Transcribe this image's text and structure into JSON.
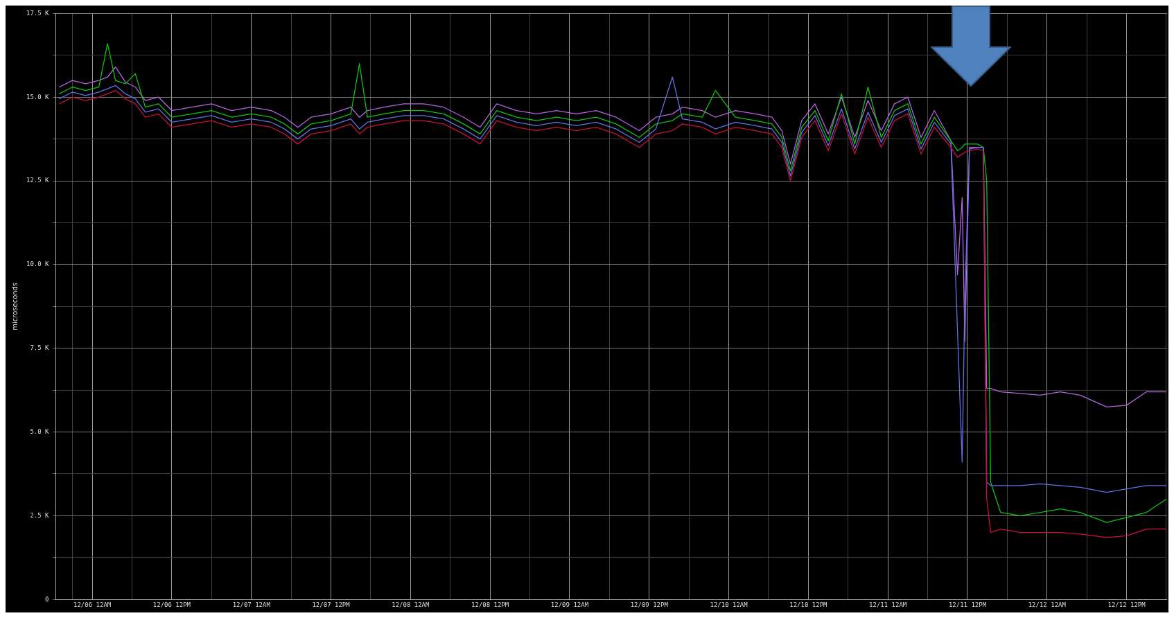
{
  "chart_data": {
    "type": "line",
    "ylabel": "microseconds",
    "grid": true,
    "legend": false,
    "marker": "none",
    "line_style": "solid",
    "x": [
      "--12-05T19:00",
      "--12-05T21:00",
      "--12-05T23:00",
      "--12-06T01:00",
      "--12-06T02:18",
      "--12-06T03:30",
      "--12-06T05:00",
      "--12-06T06:30",
      "--12-06T08:00",
      "--12-06T10:00",
      "--12-06T12:00",
      "--12-06T15:00",
      "--12-06T18:00",
      "--12-06T21:00",
      "--12-07T00:00",
      "--12-07T03:00",
      "--12-07T05:00",
      "--12-07T07:00",
      "--12-07T09:00",
      "--12-07T12:00",
      "--12-07T15:00",
      "--12-07T16:18",
      "--12-07T17:30",
      "--12-07T20:00",
      "--12-07T23:00",
      "--12-08T02:00",
      "--12-08T05:00",
      "--12-08T08:00",
      "--12-08T10:30",
      "--12-08T13:00",
      "--12-08T16:00",
      "--12-08T19:00",
      "--12-08T22:00",
      "--12-09T01:00",
      "--12-09T04:00",
      "--12-09T07:00",
      "--12-09T10:30",
      "--12-09T13:00",
      "--12-09T15:30",
      "--12-09T17:00",
      "--12-09T20:00",
      "--12-09T22:00",
      "--12-10T01:00",
      "--12-10T04:00",
      "--12-10T06:30",
      "--12-10T08:00",
      "--12-10T09:18",
      "--12-10T11:00",
      "--12-10T13:00",
      "--12-10T15:00",
      "--12-10T17:00",
      "--12-10T19:00",
      "--12-10T21:00",
      "--12-10T23:00",
      "--12-11T01:00",
      "--12-11T03:00",
      "--12-11T05:00",
      "--12-11T07:00",
      "--12-11T09:30",
      "--12-11T10:30",
      "--12-11T11:12",
      "--12-11T11:36",
      "--12-11T12:18",
      "--12-11T13:30",
      "--12-11T14:24",
      "--12-11T14:54",
      "--12-11T15:30",
      "--12-11T17:00",
      "--12-11T20:00",
      "--12-11T23:00",
      "--12-12T02:00",
      "--12-12T05:00",
      "--12-12T09:00",
      "--12-12T12:00",
      "--12-12T15:00",
      "--12-12T18:00"
    ],
    "xlim": [
      "--12-05T18:30",
      "--12-12T18:06"
    ],
    "xticks": [
      {
        "value": "--12-05T21:00",
        "label": null
      },
      {
        "value": "--12-06T00:00",
        "label": "12/06 12AM"
      },
      {
        "value": "--12-06T06:00",
        "label": null
      },
      {
        "value": "--12-06T12:00",
        "label": "12/06 12PM"
      },
      {
        "value": "--12-06T18:00",
        "label": null
      },
      {
        "value": "--12-07T00:00",
        "label": "12/07 12AM"
      },
      {
        "value": "--12-07T06:00",
        "label": null
      },
      {
        "value": "--12-07T12:00",
        "label": "12/07 12PM"
      },
      {
        "value": "--12-07T18:00",
        "label": null
      },
      {
        "value": "--12-08T00:00",
        "label": "12/08 12AM"
      },
      {
        "value": "--12-08T06:00",
        "label": null
      },
      {
        "value": "--12-08T12:00",
        "label": "12/08 12PM"
      },
      {
        "value": "--12-08T18:00",
        "label": null
      },
      {
        "value": "--12-09T00:00",
        "label": "12/09 12AM"
      },
      {
        "value": "--12-09T06:00",
        "label": null
      },
      {
        "value": "--12-09T12:00",
        "label": "12/09 12PM"
      },
      {
        "value": "--12-09T18:00",
        "label": null
      },
      {
        "value": "--12-10T00:00",
        "label": "12/10 12AM"
      },
      {
        "value": "--12-10T06:00",
        "label": null
      },
      {
        "value": "--12-10T12:00",
        "label": "12/10 12PM"
      },
      {
        "value": "--12-10T18:00",
        "label": null
      },
      {
        "value": "--12-11T00:00",
        "label": "12/11 12AM"
      },
      {
        "value": "--12-11T06:00",
        "label": null
      },
      {
        "value": "--12-11T12:00",
        "label": "12/11 12PM"
      },
      {
        "value": "--12-11T18:00",
        "label": null
      },
      {
        "value": "--12-12T00:00",
        "label": "12/12 12AM"
      },
      {
        "value": "--12-12T06:00",
        "label": null
      },
      {
        "value": "--12-12T12:00",
        "label": "12/12 12PM"
      },
      {
        "value": "--12-12T18:00",
        "label": null
      }
    ],
    "ylim": [
      0,
      17500
    ],
    "yticks": [
      0,
      {
        "value": 1250,
        "label": null
      },
      {
        "value": 2500,
        "label": "2.5 K"
      },
      {
        "value": 3750,
        "label": null
      },
      {
        "value": 5000,
        "label": "5.0 K"
      },
      {
        "value": 6250,
        "label": null
      },
      {
        "value": 7500,
        "label": "7.5 K"
      },
      {
        "value": 8750,
        "label": null
      },
      {
        "value": 10000,
        "label": "10.0 K"
      },
      {
        "value": 11250,
        "label": null
      },
      {
        "value": 12500,
        "label": "12.5 K"
      },
      {
        "value": 13750,
        "label": null
      },
      {
        "value": 15000,
        "label": "15.0 K"
      },
      {
        "value": 16250,
        "label": null
      },
      {
        "value": 17500,
        "label": "17.5 K"
      }
    ],
    "series": [
      {
        "color": "#c8103c",
        "values": [
          14800,
          15000,
          14900,
          15000,
          15100,
          15200,
          14950,
          14800,
          14400,
          14500,
          14100,
          14200,
          14300,
          14100,
          14200,
          14100,
          13900,
          13600,
          13900,
          14000,
          14200,
          13900,
          14100,
          14200,
          14300,
          14300,
          14200,
          13900,
          13600,
          14300,
          14100,
          14000,
          14100,
          14000,
          14100,
          13900,
          13500,
          13900,
          14000,
          14200,
          14100,
          13900,
          14100,
          14000,
          13900,
          13500,
          12500,
          13800,
          14300,
          13400,
          14500,
          13300,
          14400,
          13500,
          14300,
          14500,
          13300,
          14100,
          13500,
          13200,
          13300,
          13350,
          13400,
          13450,
          13400,
          3000,
          2000,
          2100,
          2000,
          2000,
          2000,
          1950,
          1850,
          1900,
          2100,
          2100
        ]
      },
      {
        "color": "#6272e6",
        "values": [
          14950,
          15150,
          15050,
          15150,
          15250,
          15350,
          15100,
          14950,
          14550,
          14650,
          14250,
          14350,
          14450,
          14250,
          14350,
          14250,
          14050,
          13750,
          14050,
          14150,
          14350,
          14050,
          14250,
          14350,
          14450,
          14450,
          14350,
          14050,
          13750,
          14450,
          14250,
          14150,
          14250,
          14150,
          14250,
          14050,
          13650,
          14050,
          15600,
          14350,
          14250,
          14050,
          14250,
          14150,
          14050,
          13650,
          12650,
          13950,
          14450,
          13550,
          14650,
          13450,
          14550,
          13650,
          14450,
          14650,
          13450,
          14250,
          13600,
          8000,
          4100,
          9000,
          13450,
          13500,
          13500,
          3500,
          3400,
          3400,
          3400,
          3450,
          3400,
          3350,
          3200,
          3300,
          3400,
          3400
        ]
      },
      {
        "color": "#10c010",
        "values": [
          15100,
          15300,
          15200,
          15300,
          16600,
          15500,
          15400,
          15700,
          14700,
          14800,
          14400,
          14500,
          14600,
          14400,
          14500,
          14400,
          14200,
          13900,
          14200,
          14300,
          14500,
          16000,
          14400,
          14500,
          14600,
          14600,
          14500,
          14200,
          13900,
          14600,
          14400,
          14300,
          14400,
          14300,
          14400,
          14200,
          13800,
          14200,
          14300,
          14500,
          14400,
          15200,
          14400,
          14300,
          14200,
          13800,
          12800,
          14100,
          14600,
          13700,
          15100,
          13600,
          15300,
          13800,
          14600,
          14800,
          13600,
          14400,
          13700,
          13400,
          13500,
          13600,
          13600,
          13600,
          13500,
          12500,
          3500,
          2600,
          2500,
          2600,
          2700,
          2600,
          2300,
          2450,
          2600,
          3000
        ]
      },
      {
        "color": "#b464e0",
        "values": [
          15300,
          15500,
          15400,
          15500,
          15600,
          15900,
          15450,
          15300,
          14900,
          15000,
          14600,
          14700,
          14800,
          14600,
          14700,
          14600,
          14400,
          14100,
          14400,
          14500,
          14700,
          14400,
          14600,
          14700,
          14800,
          14800,
          14700,
          14400,
          14100,
          14800,
          14600,
          14500,
          14600,
          14500,
          14600,
          14400,
          14000,
          14400,
          14500,
          14700,
          14600,
          14400,
          14600,
          14500,
          14400,
          14000,
          13000,
          14300,
          14800,
          13900,
          15000,
          13800,
          14900,
          14000,
          14800,
          15000,
          13800,
          14600,
          13700,
          9700,
          12000,
          7700,
          13500,
          13500,
          13500,
          6300,
          6300,
          6200,
          6150,
          6100,
          6200,
          6100,
          5750,
          5800,
          6200,
          6200
        ]
      }
    ]
  }
}
